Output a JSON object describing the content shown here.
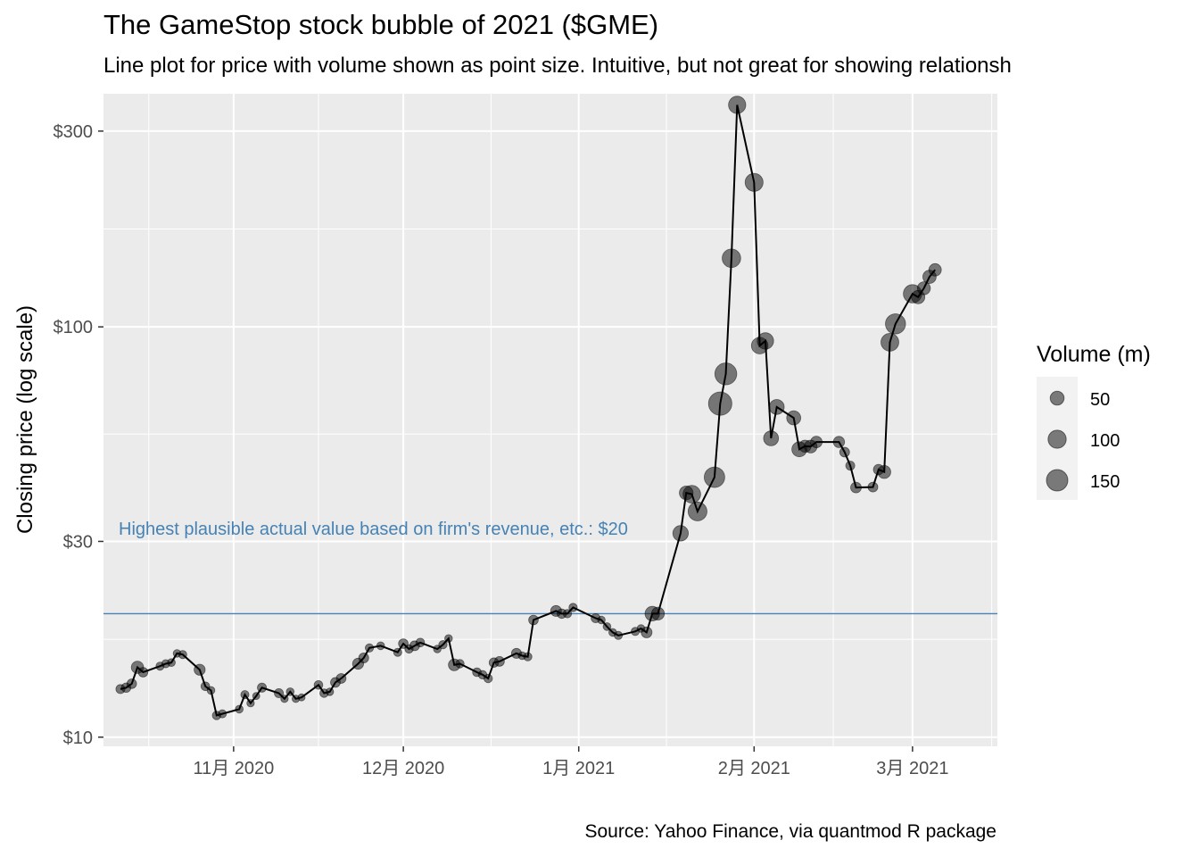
{
  "title": "The GameStop stock bubble of 2021 ($GME)",
  "subtitle": "Line plot for price with volume shown as point size. Intuitive, but not great for showing relationsh",
  "caption": "Source: Yahoo Finance, via quantmod R package",
  "chart_data": {
    "type": "scatter",
    "scale_y": "log",
    "ylabel": "Closing price (log scale)",
    "xlabel": "",
    "ylim": [
      9.5,
      370
    ],
    "xlim": [
      "2020-10-09",
      "2021-03-16"
    ],
    "y_ticks": [
      {
        "value": 10,
        "label": "$10"
      },
      {
        "value": 30,
        "label": "$30"
      },
      {
        "value": 100,
        "label": "$100"
      },
      {
        "value": 300,
        "label": "$300"
      }
    ],
    "x_ticks": [
      {
        "value": "2020-11-01",
        "label": "11月 2020"
      },
      {
        "value": "2020-12-01",
        "label": "12月 2020"
      },
      {
        "value": "2021-01-01",
        "label": "1月 2021"
      },
      {
        "value": "2021-02-01",
        "label": "2月 2021"
      },
      {
        "value": "2021-03-01",
        "label": "3月 2021"
      }
    ],
    "grid": true,
    "legend": {
      "title": "Volume (m)",
      "position": "right",
      "entries": [
        {
          "value": 50,
          "label": "50"
        },
        {
          "value": 100,
          "label": "100"
        },
        {
          "value": 150,
          "label": "150"
        }
      ]
    },
    "reference_line": {
      "y": 20,
      "color": "#4682b4",
      "label": "Highest plausible actual value based on firm's revenue, etc.: $20"
    },
    "x": [
      "2020-10-12",
      "2020-10-13",
      "2020-10-14",
      "2020-10-15",
      "2020-10-16",
      "2020-10-19",
      "2020-10-20",
      "2020-10-21",
      "2020-10-22",
      "2020-10-23",
      "2020-10-26",
      "2020-10-27",
      "2020-10-28",
      "2020-10-29",
      "2020-10-30",
      "2020-11-02",
      "2020-11-03",
      "2020-11-04",
      "2020-11-05",
      "2020-11-06",
      "2020-11-09",
      "2020-11-10",
      "2020-11-11",
      "2020-11-12",
      "2020-11-13",
      "2020-11-16",
      "2020-11-17",
      "2020-11-18",
      "2020-11-19",
      "2020-11-20",
      "2020-11-23",
      "2020-11-24",
      "2020-11-25",
      "2020-11-27",
      "2020-11-30",
      "2020-12-01",
      "2020-12-02",
      "2020-12-03",
      "2020-12-04",
      "2020-12-07",
      "2020-12-08",
      "2020-12-09",
      "2020-12-10",
      "2020-12-11",
      "2020-12-14",
      "2020-12-15",
      "2020-12-16",
      "2020-12-17",
      "2020-12-18",
      "2020-12-21",
      "2020-12-22",
      "2020-12-23",
      "2020-12-24",
      "2020-12-28",
      "2020-12-29",
      "2020-12-30",
      "2020-12-31",
      "2021-01-04",
      "2021-01-05",
      "2021-01-06",
      "2021-01-07",
      "2021-01-08",
      "2021-01-11",
      "2021-01-12",
      "2021-01-13",
      "2021-01-14",
      "2021-01-15",
      "2021-01-19",
      "2021-01-20",
      "2021-01-21",
      "2021-01-22",
      "2021-01-25",
      "2021-01-26",
      "2021-01-27",
      "2021-01-28",
      "2021-01-29",
      "2021-02-01",
      "2021-02-02",
      "2021-02-03",
      "2021-02-04",
      "2021-02-05",
      "2021-02-08",
      "2021-02-09",
      "2021-02-10",
      "2021-02-11",
      "2021-02-12",
      "2021-02-16",
      "2021-02-17",
      "2021-02-18",
      "2021-02-19",
      "2021-02-22",
      "2021-02-23",
      "2021-02-24",
      "2021-02-25",
      "2021-02-26",
      "2021-03-01",
      "2021-03-02",
      "2021-03-03",
      "2021-03-04",
      "2021-03-05"
    ],
    "series": [
      {
        "values": [
          13.1,
          13.2,
          13.5,
          14.8,
          14.4,
          14.9,
          15.1,
          15.2,
          16.0,
          15.9,
          14.6,
          13.3,
          13.0,
          11.3,
          11.4,
          11.7,
          12.7,
          12.1,
          12.6,
          13.2,
          12.8,
          12.4,
          12.9,
          12.4,
          12.5,
          13.4,
          12.8,
          12.9,
          13.6,
          13.9,
          15.1,
          15.6,
          16.5,
          16.7,
          16.1,
          16.9,
          16.4,
          16.7,
          17.0,
          16.4,
          16.8,
          17.4,
          15.0,
          15.1,
          14.4,
          14.2,
          13.9,
          15.2,
          15.3,
          16.0,
          15.8,
          15.7,
          19.3,
          20.3,
          20.0,
          20.0,
          20.7,
          19.5,
          19.3,
          18.6,
          18.0,
          17.7,
          18.1,
          18.4,
          18.0,
          20.0,
          20.0,
          31.4,
          39.4,
          39.1,
          35.5,
          43.0,
          65.0,
          76.8,
          147.0,
          347.5,
          225.0,
          90.0,
          92.4,
          53.5,
          63.8,
          60.0,
          50.3,
          51.2,
          51.1,
          52.4,
          52.4,
          49.5,
          45.9,
          40.6,
          40.7,
          44.9,
          44.3,
          91.7,
          101.7,
          120.4,
          118.2,
          124.2,
          132.4,
          137.7
        ],
        "volume": [
          14,
          16,
          17,
          36,
          17,
          10,
          10,
          9,
          8,
          10,
          26,
          13,
          9,
          12,
          10,
          9,
          10,
          7,
          6,
          14,
          14,
          7,
          9,
          7,
          6,
          13,
          12,
          8,
          18,
          18,
          27,
          19,
          11,
          9,
          10,
          17,
          11,
          18,
          13,
          8,
          11,
          8,
          32,
          12,
          13,
          12,
          12,
          16,
          18,
          19,
          9,
          11,
          17,
          25,
          16,
          11,
          11,
          14,
          8,
          9,
          9,
          10,
          10,
          8,
          25,
          57,
          41,
          68,
          48,
          93,
          110,
          135,
          185,
          160,
          105,
          90,
          98,
          80,
          78,
          62,
          62,
          53,
          62,
          34,
          40,
          30,
          28,
          18,
          14,
          24,
          18,
          22,
          42,
          96,
          130,
          103,
          45,
          42,
          46,
          38
        ]
      }
    ]
  }
}
